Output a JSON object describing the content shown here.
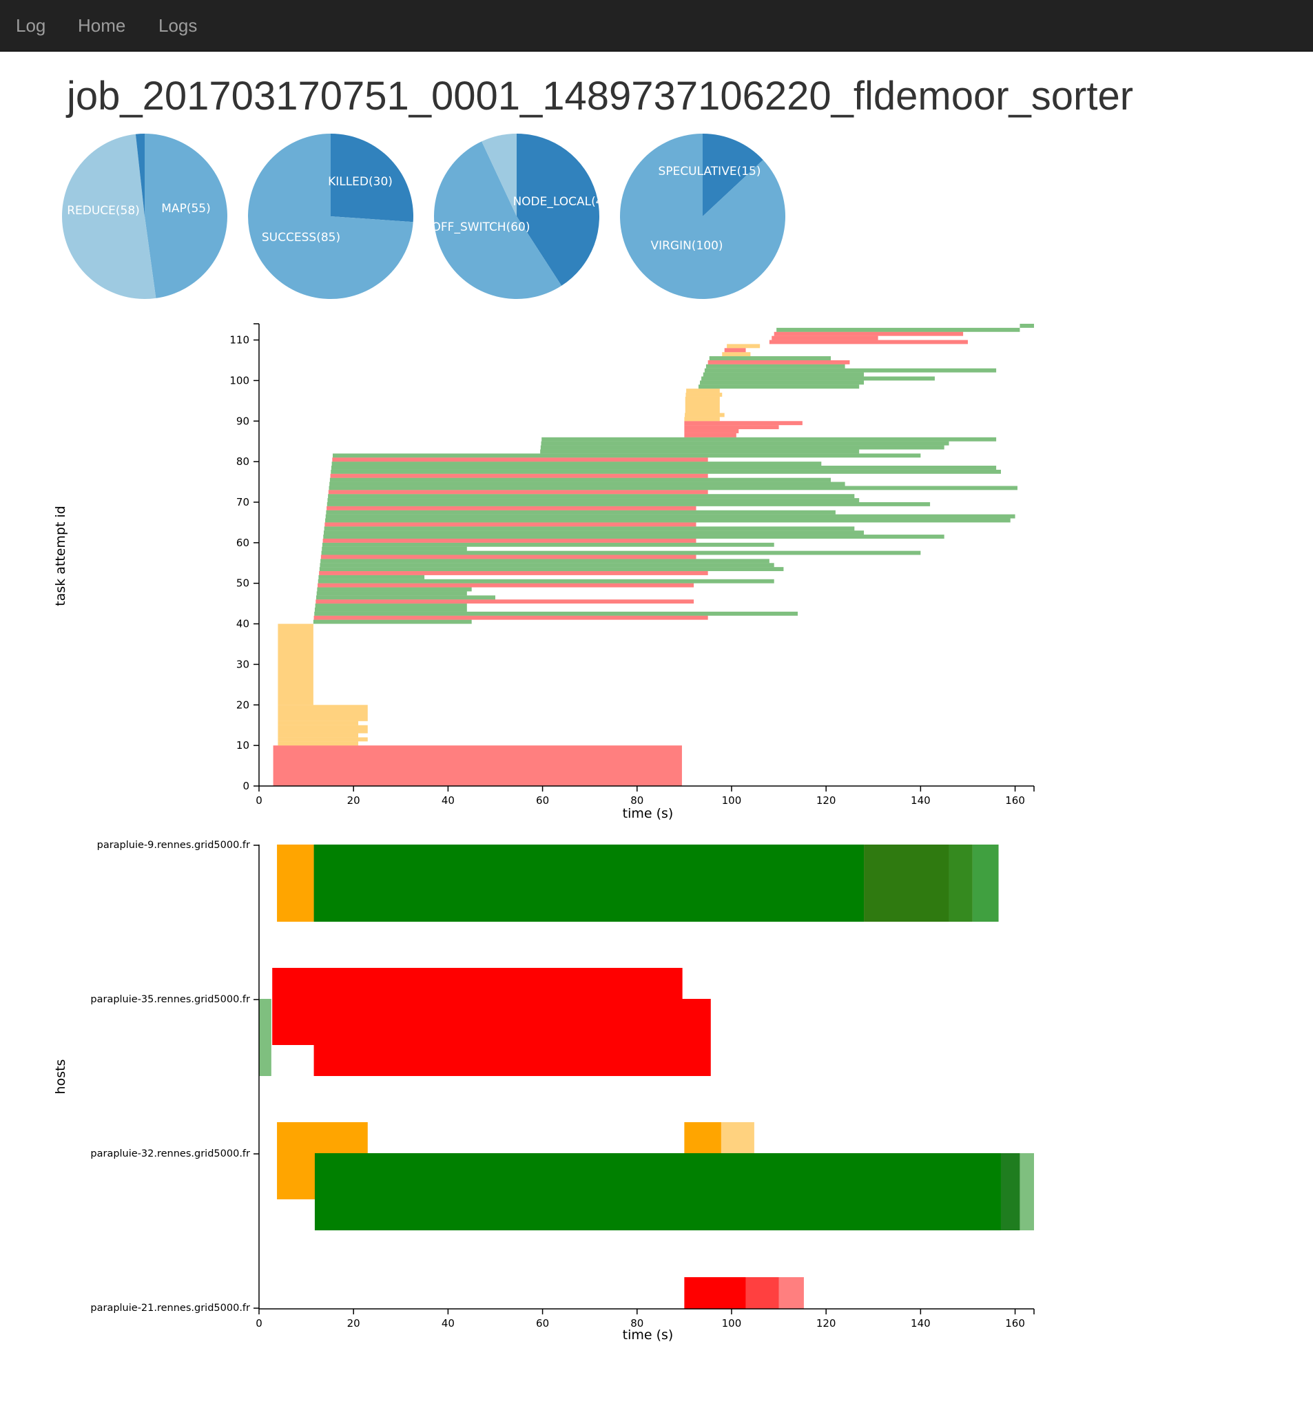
{
  "navbar": {
    "brand": "Log",
    "links": [
      "Home",
      "Logs"
    ]
  },
  "job_title": "job_201703170751_0001_1489737106220_fldemoor_sorter",
  "colors": {
    "dark": "#3182bd",
    "mid": "#6baed6",
    "light": "#9ecae1",
    "lighter": "#c6dbef",
    "green": "#008000",
    "orange": "#ffa500",
    "red": "#ff0000"
  },
  "pies": [
    {
      "slices": [
        {
          "label": "MAP(55)",
          "value": 55,
          "color": "#6baed6"
        },
        {
          "label": "REDUCE(58)",
          "value": 58,
          "color": "#9ecae1"
        },
        {
          "label": "",
          "value": 2,
          "color": "#3182bd"
        }
      ]
    },
    {
      "slices": [
        {
          "label": "KILLED(30)",
          "value": 30,
          "color": "#3182bd"
        },
        {
          "label": "SUCCESS(85)",
          "value": 85,
          "color": "#6baed6"
        }
      ]
    },
    {
      "slices": [
        {
          "label": "NODE_LOCAL(4",
          "value": 47,
          "color": "#3182bd"
        },
        {
          "label": "OFF_SWITCH(60)",
          "value": 60,
          "color": "#6baed6"
        },
        {
          "label": "",
          "value": 8,
          "color": "#9ecae1"
        }
      ]
    },
    {
      "slices": [
        {
          "label": "SPECULATIVE(15)",
          "value": 15,
          "color": "#3182bd"
        },
        {
          "label": "VIRGIN(100)",
          "value": 100,
          "color": "#6baed6"
        }
      ]
    }
  ],
  "chart_data": [
    {
      "type": "gantt",
      "ylabel": "task attempt id",
      "xlabel": "time (s)",
      "xlim": [
        0,
        164
      ],
      "ylim": [
        0,
        114
      ],
      "x_ticks": [
        0,
        20,
        40,
        60,
        80,
        100,
        120,
        140,
        160
      ],
      "y_ticks": [
        0,
        10,
        20,
        30,
        40,
        50,
        60,
        70,
        80,
        90,
        100,
        110
      ],
      "legend_colors": {
        "map": "#ffa500",
        "reduce": "#008000",
        "killed": "#ff0000"
      },
      "bars": [
        {
          "y0": 0,
          "y1": 10,
          "start": 3,
          "end": 89.5,
          "kind": "killed"
        },
        {
          "y0": 10,
          "y1": 11,
          "start": 4,
          "end": 21,
          "kind": "map"
        },
        {
          "y0": 11,
          "y1": 12,
          "start": 4,
          "end": 23,
          "kind": "map"
        },
        {
          "y0": 12,
          "y1": 13,
          "start": 4,
          "end": 21,
          "kind": "map"
        },
        {
          "y0": 13,
          "y1": 15,
          "start": 4,
          "end": 23,
          "kind": "map"
        },
        {
          "y0": 15,
          "y1": 16,
          "start": 4,
          "end": 21,
          "kind": "map"
        },
        {
          "y0": 16,
          "y1": 20,
          "start": 4,
          "end": 23,
          "kind": "map"
        },
        {
          "y0": 20,
          "y1": 40,
          "start": 4,
          "end": 11.5,
          "kind": "map"
        },
        {
          "y0": 40,
          "y1": 41,
          "start": 11.5,
          "end": 45,
          "kind": "reduce"
        },
        {
          "y0": 41,
          "y1": 42,
          "start": 11.6,
          "end": 95,
          "kind": "killed"
        },
        {
          "y0": 42,
          "y1": 43,
          "start": 11.7,
          "end": 114,
          "kind": "reduce"
        },
        {
          "y0": 43,
          "y1": 44,
          "start": 11.8,
          "end": 44,
          "kind": "reduce"
        },
        {
          "y0": 44,
          "y1": 45,
          "start": 11.9,
          "end": 44,
          "kind": "reduce"
        },
        {
          "y0": 45,
          "y1": 46,
          "start": 12,
          "end": 92,
          "kind": "killed"
        },
        {
          "y0": 46,
          "y1": 47,
          "start": 12.1,
          "end": 50,
          "kind": "reduce"
        },
        {
          "y0": 47,
          "y1": 48,
          "start": 12.2,
          "end": 44,
          "kind": "reduce"
        },
        {
          "y0": 48,
          "y1": 49,
          "start": 12.3,
          "end": 45,
          "kind": "reduce"
        },
        {
          "y0": 49,
          "y1": 50,
          "start": 12.4,
          "end": 92,
          "kind": "killed"
        },
        {
          "y0": 50,
          "y1": 51,
          "start": 12.5,
          "end": 109,
          "kind": "reduce"
        },
        {
          "y0": 51,
          "y1": 52,
          "start": 12.6,
          "end": 35,
          "kind": "reduce"
        },
        {
          "y0": 52,
          "y1": 53,
          "start": 12.7,
          "end": 95,
          "kind": "killed"
        },
        {
          "y0": 53,
          "y1": 54,
          "start": 12.8,
          "end": 111,
          "kind": "reduce"
        },
        {
          "y0": 54,
          "y1": 55,
          "start": 12.9,
          "end": 109,
          "kind": "reduce"
        },
        {
          "y0": 55,
          "y1": 56,
          "start": 13,
          "end": 108,
          "kind": "reduce"
        },
        {
          "y0": 56,
          "y1": 57,
          "start": 13.1,
          "end": 92.5,
          "kind": "killed"
        },
        {
          "y0": 57,
          "y1": 58,
          "start": 13.2,
          "end": 140,
          "kind": "reduce"
        },
        {
          "y0": 58,
          "y1": 59,
          "start": 13.3,
          "end": 44,
          "kind": "reduce"
        },
        {
          "y0": 59,
          "y1": 60,
          "start": 13.4,
          "end": 109,
          "kind": "reduce"
        },
        {
          "y0": 60,
          "y1": 61,
          "start": 13.5,
          "end": 92.5,
          "kind": "killed"
        },
        {
          "y0": 61,
          "y1": 62,
          "start": 13.6,
          "end": 145,
          "kind": "reduce"
        },
        {
          "y0": 62,
          "y1": 63,
          "start": 13.7,
          "end": 128,
          "kind": "reduce"
        },
        {
          "y0": 63,
          "y1": 64,
          "start": 13.8,
          "end": 126,
          "kind": "reduce"
        },
        {
          "y0": 64,
          "y1": 65,
          "start": 13.9,
          "end": 92.5,
          "kind": "killed"
        },
        {
          "y0": 65,
          "y1": 66,
          "start": 14,
          "end": 159,
          "kind": "reduce"
        },
        {
          "y0": 66,
          "y1": 67,
          "start": 14.1,
          "end": 160,
          "kind": "reduce"
        },
        {
          "y0": 67,
          "y1": 68,
          "start": 14.2,
          "end": 122,
          "kind": "reduce"
        },
        {
          "y0": 68,
          "y1": 69,
          "start": 14.3,
          "end": 92.5,
          "kind": "killed"
        },
        {
          "y0": 69,
          "y1": 70,
          "start": 14.4,
          "end": 142,
          "kind": "reduce"
        },
        {
          "y0": 70,
          "y1": 71,
          "start": 14.5,
          "end": 127,
          "kind": "reduce"
        },
        {
          "y0": 71,
          "y1": 72,
          "start": 14.6,
          "end": 126,
          "kind": "reduce"
        },
        {
          "y0": 72,
          "y1": 73,
          "start": 14.7,
          "end": 95,
          "kind": "killed"
        },
        {
          "y0": 73,
          "y1": 74,
          "start": 14.8,
          "end": 160.5,
          "kind": "reduce"
        },
        {
          "y0": 74,
          "y1": 75,
          "start": 14.9,
          "end": 124,
          "kind": "reduce"
        },
        {
          "y0": 75,
          "y1": 76,
          "start": 15,
          "end": 121,
          "kind": "reduce"
        },
        {
          "y0": 76,
          "y1": 77,
          "start": 15.1,
          "end": 95,
          "kind": "killed"
        },
        {
          "y0": 77,
          "y1": 78,
          "start": 15.2,
          "end": 157,
          "kind": "reduce"
        },
        {
          "y0": 78,
          "y1": 79,
          "start": 15.3,
          "end": 156,
          "kind": "reduce"
        },
        {
          "y0": 79,
          "y1": 80,
          "start": 15.4,
          "end": 119,
          "kind": "reduce"
        },
        {
          "y0": 80,
          "y1": 81,
          "start": 15.5,
          "end": 95,
          "kind": "killed"
        },
        {
          "y0": 81,
          "y1": 82,
          "start": 15.6,
          "end": 140,
          "kind": "reduce"
        },
        {
          "y0": 82,
          "y1": 83,
          "start": 59.5,
          "end": 127,
          "kind": "reduce"
        },
        {
          "y0": 83,
          "y1": 84,
          "start": 59.6,
          "end": 145,
          "kind": "reduce"
        },
        {
          "y0": 84,
          "y1": 85,
          "start": 59.7,
          "end": 146,
          "kind": "reduce"
        },
        {
          "y0": 85,
          "y1": 86,
          "start": 59.8,
          "end": 156,
          "kind": "reduce"
        },
        {
          "y0": 86,
          "y1": 87,
          "start": 90,
          "end": 101,
          "kind": "killed"
        },
        {
          "y0": 87,
          "y1": 88,
          "start": 90,
          "end": 101.5,
          "kind": "killed"
        },
        {
          "y0": 88,
          "y1": 89,
          "start": 90,
          "end": 110,
          "kind": "killed"
        },
        {
          "y0": 89,
          "y1": 90,
          "start": 90,
          "end": 115,
          "kind": "killed"
        },
        {
          "y0": 90,
          "y1": 91,
          "start": 90,
          "end": 97.5,
          "kind": "map"
        },
        {
          "y0": 91,
          "y1": 92,
          "start": 90.1,
          "end": 98.5,
          "kind": "map"
        },
        {
          "y0": 92,
          "y1": 96,
          "start": 90.2,
          "end": 97.5,
          "kind": "map"
        },
        {
          "y0": 96,
          "y1": 97,
          "start": 90.3,
          "end": 98,
          "kind": "map"
        },
        {
          "y0": 97,
          "y1": 98,
          "start": 90.4,
          "end": 97.5,
          "kind": "map"
        },
        {
          "y0": 98,
          "y1": 99,
          "start": 93,
          "end": 127,
          "kind": "reduce"
        },
        {
          "y0": 99,
          "y1": 100,
          "start": 93.3,
          "end": 128,
          "kind": "reduce"
        },
        {
          "y0": 100,
          "y1": 101,
          "start": 93.6,
          "end": 143,
          "kind": "reduce"
        },
        {
          "y0": 101,
          "y1": 102,
          "start": 94,
          "end": 128,
          "kind": "reduce"
        },
        {
          "y0": 102,
          "y1": 103,
          "start": 94.3,
          "end": 156,
          "kind": "reduce"
        },
        {
          "y0": 103,
          "y1": 104,
          "start": 94.6,
          "end": 124,
          "kind": "reduce"
        },
        {
          "y0": 104,
          "y1": 105,
          "start": 95,
          "end": 125,
          "kind": "killed"
        },
        {
          "y0": 105,
          "y1": 106,
          "start": 95.3,
          "end": 121,
          "kind": "reduce"
        },
        {
          "y0": 106,
          "y1": 107,
          "start": 98,
          "end": 104,
          "kind": "map"
        },
        {
          "y0": 107,
          "y1": 108,
          "start": 98.5,
          "end": 103,
          "kind": "killed"
        },
        {
          "y0": 108,
          "y1": 109,
          "start": 99,
          "end": 106,
          "kind": "map"
        },
        {
          "y0": 109,
          "y1": 110,
          "start": 108,
          "end": 150,
          "kind": "killed"
        },
        {
          "y0": 110,
          "y1": 111,
          "start": 108.5,
          "end": 131,
          "kind": "killed"
        },
        {
          "y0": 111,
          "y1": 112,
          "start": 109,
          "end": 149,
          "kind": "killed"
        },
        {
          "y0": 112,
          "y1": 113,
          "start": 109.5,
          "end": 161,
          "kind": "reduce"
        },
        {
          "y0": 113,
          "y1": 114,
          "start": 161,
          "end": 164,
          "kind": "reduce"
        }
      ]
    },
    {
      "type": "gantt",
      "ylabel": "hosts",
      "xlabel": "time (s)",
      "xlim": [
        0,
        164
      ],
      "x_ticks": [
        0,
        20,
        40,
        60,
        80,
        100,
        120,
        140,
        160
      ],
      "hosts": [
        "parapluie-9.rennes.grid5000.fr",
        "parapluie-35.rennes.grid5000.fr",
        "parapluie-32.rennes.grid5000.fr",
        "parapluie-21.rennes.grid5000.fr"
      ],
      "blocks": [
        {
          "host": 0,
          "lane": "upper",
          "start": 3.8,
          "end": 11.6,
          "color": "#ffa500",
          "opacity": 1
        },
        {
          "host": 0,
          "lane": "full",
          "start": 11.6,
          "end": 128,
          "color": "#008000",
          "opacity": 1
        },
        {
          "host": 0,
          "lane": "full",
          "start": 128,
          "end": 146,
          "color": "#2f7a10",
          "opacity": 1
        },
        {
          "host": 0,
          "lane": "full",
          "start": 146,
          "end": 151,
          "color": "#358a1f",
          "opacity": 1
        },
        {
          "host": 0,
          "lane": "full",
          "start": 151,
          "end": 156.5,
          "color": "#008000",
          "opacity": 0.75
        },
        {
          "host": 1,
          "lane": "lower",
          "start": 0,
          "end": 2.6,
          "color": "#008000",
          "opacity": 0.5
        },
        {
          "host": 1,
          "lane": "upper",
          "start": 2.8,
          "end": 89.6,
          "color": "#ff0000",
          "opacity": 1
        },
        {
          "host": 1,
          "lane": "lower",
          "start": 11.6,
          "end": 95.6,
          "color": "#ff0000",
          "opacity": 1
        },
        {
          "host": 2,
          "lane": "upper",
          "start": 3.8,
          "end": 23,
          "color": "#ffa500",
          "opacity": 1
        },
        {
          "host": 2,
          "lane": "upper",
          "start": 90,
          "end": 97.8,
          "color": "#ffa500",
          "opacity": 1
        },
        {
          "host": 2,
          "lane": "upper",
          "start": 97.8,
          "end": 104.8,
          "color": "#ffa500",
          "opacity": 0.5
        },
        {
          "host": 2,
          "lane": "lower",
          "start": 11.8,
          "end": 157,
          "color": "#008000",
          "opacity": 1
        },
        {
          "host": 2,
          "lane": "lower",
          "start": 157,
          "end": 161,
          "color": "#1f7d1f",
          "opacity": 1
        },
        {
          "host": 2,
          "lane": "lower",
          "start": 161,
          "end": 164,
          "color": "#008000",
          "opacity": 0.5
        },
        {
          "host": 3,
          "lane": "upper",
          "start": 90,
          "end": 103,
          "color": "#ff0000",
          "opacity": 1
        },
        {
          "host": 3,
          "lane": "upper",
          "start": 103,
          "end": 110,
          "color": "#ff0000",
          "opacity": 0.75
        },
        {
          "host": 3,
          "lane": "upper",
          "start": 110,
          "end": 115.3,
          "color": "#ff0000",
          "opacity": 0.5
        }
      ]
    }
  ]
}
